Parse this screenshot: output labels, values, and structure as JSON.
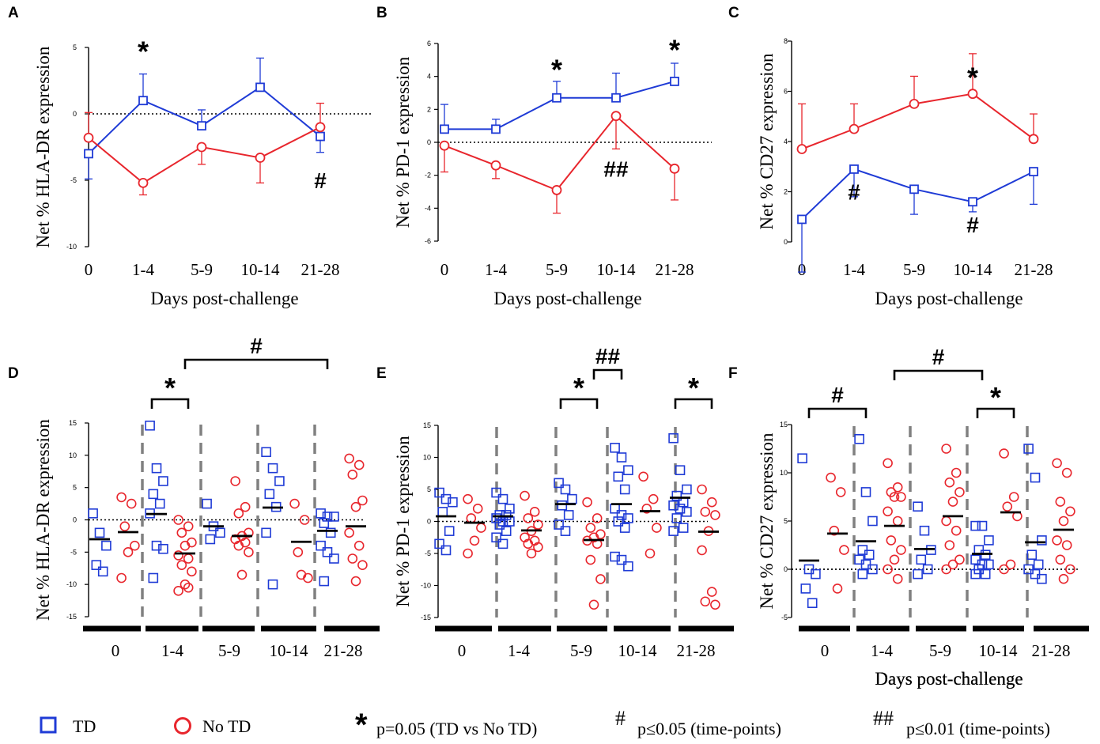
{
  "colors": {
    "td": "#1f3bd6",
    "notd": "#e8262d",
    "axis": "#000000",
    "divider": "#808080"
  },
  "legend": {
    "td_label": "TD",
    "notd_label": "No TD",
    "star_symbol": "*",
    "star_text": "p=0.05 (TD vs No TD)",
    "hash_symbol": "#",
    "hash_text": "p≤0.05 (time-points)",
    "dhash_symbol": "##",
    "dhash_text": "p≤0.01 (time-points)"
  },
  "chart_data": [
    {
      "panel": "A",
      "type": "line",
      "ylabel": "Net % HLA-DR expression",
      "xlabel": "Days post-challenge",
      "categories": [
        "0",
        "1-4",
        "5-9",
        "10-14",
        "21-28"
      ],
      "ylim": [
        -10,
        5
      ],
      "yticks": [
        -10,
        -5,
        0,
        5
      ],
      "grid": false,
      "series": [
        {
          "name": "TD",
          "color": "td",
          "marker": "square",
          "values": [
            -3.0,
            1.0,
            -0.9,
            2.0,
            -1.7
          ],
          "err": [
            1.9,
            2.0,
            1.2,
            2.2,
            1.2
          ]
        },
        {
          "name": "No TD",
          "color": "notd",
          "marker": "circle",
          "values": [
            -1.8,
            -5.2,
            -2.5,
            -3.3,
            -1.0
          ],
          "err": [
            1.9,
            0.9,
            1.3,
            1.9,
            1.8
          ]
        }
      ],
      "annotations": [
        {
          "text": "*",
          "cat": 1,
          "y": 4.8
        },
        {
          "text": "#",
          "cat": 4,
          "y": -5.0
        }
      ]
    },
    {
      "panel": "B",
      "type": "line",
      "ylabel": "Net % PD-1 expression",
      "xlabel": "Days post-challenge",
      "categories": [
        "0",
        "1-4",
        "5-9",
        "10-14",
        "21-28"
      ],
      "ylim": [
        -6,
        6
      ],
      "yticks": [
        -6,
        -4,
        -2,
        0,
        2,
        4,
        6
      ],
      "grid": false,
      "series": [
        {
          "name": "TD",
          "color": "td",
          "marker": "square",
          "values": [
            0.8,
            0.8,
            2.7,
            2.7,
            3.7
          ],
          "err": [
            1.5,
            0.6,
            1.0,
            1.5,
            1.1
          ]
        },
        {
          "name": "No TD",
          "color": "notd",
          "marker": "circle",
          "values": [
            -0.2,
            -1.4,
            -2.9,
            1.6,
            -1.6
          ],
          "err": [
            1.6,
            0.8,
            1.4,
            2.0,
            1.9
          ]
        }
      ],
      "annotations": [
        {
          "text": "*",
          "cat": 2,
          "y": 4.5
        },
        {
          "text": "*",
          "cat": 4,
          "y": 5.7
        },
        {
          "text": "##",
          "cat": 3,
          "y": -1.6
        }
      ]
    },
    {
      "panel": "C",
      "type": "line",
      "ylabel": "Net % CD27 expression",
      "xlabel": "Days post-challenge",
      "categories": [
        "0",
        "1-4",
        "5-9",
        "10-14",
        "21-28"
      ],
      "ylim": [
        0,
        8
      ],
      "yticks": [
        0,
        2,
        4,
        6,
        8
      ],
      "grid": false,
      "series": [
        {
          "name": "TD",
          "color": "td",
          "marker": "square",
          "values": [
            0.9,
            2.9,
            2.1,
            1.6,
            2.8
          ],
          "err": [
            2.1,
            1.1,
            1.0,
            0.4,
            1.3
          ]
        },
        {
          "name": "No TD",
          "color": "notd",
          "marker": "circle",
          "values": [
            3.7,
            4.5,
            5.5,
            5.9,
            4.1
          ],
          "err": [
            1.8,
            1.0,
            1.1,
            1.6,
            1.0
          ]
        }
      ],
      "annotations": [
        {
          "text": "*",
          "cat": 3,
          "y": 6.6
        },
        {
          "text": "#",
          "cat": 1,
          "y": 2.0
        },
        {
          "text": "#",
          "cat": 3,
          "y": 0.7
        }
      ]
    },
    {
      "panel": "D",
      "type": "scatter",
      "ylabel": "Net % HLA-DR expression",
      "xlabel": "Days post-challenge",
      "categories": [
        "0",
        "1-4",
        "5-9",
        "10-14",
        "21-28"
      ],
      "ylim": [
        -15,
        15
      ],
      "yticks": [
        -15,
        -10,
        -5,
        0,
        5,
        10,
        15
      ],
      "grid": false,
      "groups": [
        {
          "td": [
            1,
            -2,
            -4,
            -7,
            -8
          ],
          "td_mean": -3.0,
          "notd": [
            3.5,
            2.5,
            -1,
            -4,
            -5,
            -9
          ],
          "notd_mean": -1.9
        },
        {
          "td": [
            14.6,
            8,
            6,
            4,
            2.5,
            1,
            -4,
            -4.5,
            -9
          ],
          "td_mean": 0.9,
          "notd": [
            0,
            -1,
            -2,
            -3.5,
            -4,
            -5.5,
            -6,
            -7,
            -8,
            -10,
            -11,
            -10.5
          ],
          "notd_mean": -5.2
        },
        {
          "td": [
            2.5,
            -1,
            -2,
            -3
          ],
          "td_mean": -1.0,
          "notd": [
            6,
            2,
            1,
            -2,
            -2.5,
            -3,
            -3.5,
            -4,
            -5,
            -8.5
          ],
          "notd_mean": -2.5
        },
        {
          "td": [
            10.5,
            8,
            6,
            4,
            2,
            -2,
            -10
          ],
          "td_mean": 1.9,
          "notd": [
            2.5,
            0,
            -5,
            -9,
            -8.5
          ],
          "notd_mean": -3.4
        },
        {
          "td": [
            1,
            0.5,
            0.5,
            -0.5,
            -2,
            -4,
            -5,
            -6,
            -9.5
          ],
          "td_mean": -1.7,
          "notd": [
            9.5,
            8.5,
            7,
            3,
            2,
            -2,
            -4,
            -6,
            -7,
            -9.5
          ],
          "notd_mean": -1.0
        }
      ],
      "annotations": [
        {
          "text": "*",
          "from": 1,
          "to": 1,
          "level": "low"
        },
        {
          "text": "#",
          "from": 1,
          "to": 4,
          "level": "high"
        }
      ]
    },
    {
      "panel": "E",
      "type": "scatter",
      "ylabel": "Net % PD-1 expression",
      "xlabel": "Days post-challenge",
      "categories": [
        "0",
        "1-4",
        "5-9",
        "10-14",
        "21-28"
      ],
      "ylim": [
        -15,
        15
      ],
      "yticks": [
        -15,
        -10,
        -5,
        0,
        5,
        10,
        15
      ],
      "grid": false,
      "groups": [
        {
          "td": [
            4.5,
            3.5,
            3,
            1.5,
            -1.5,
            -3.5,
            -4.5
          ],
          "td_mean": 0.8,
          "notd": [
            3.5,
            2,
            0.5,
            -1,
            -3,
            -5
          ],
          "notd_mean": -0.2
        },
        {
          "td": [
            4.5,
            3.5,
            2,
            1,
            1,
            0.5,
            0,
            0,
            -0.5,
            -1.5,
            -2.5,
            -3.5
          ],
          "td_mean": 0.8,
          "notd": [
            4,
            1.5,
            0.5,
            -0.5,
            -1.5,
            -2.5,
            -3,
            -3.5,
            -4,
            -5
          ],
          "notd_mean": -1.4
        },
        {
          "td": [
            6,
            5,
            3.5,
            2.5,
            1,
            -0.5,
            -1.5
          ],
          "td_mean": 2.7,
          "notd": [
            3,
            0.5,
            -1,
            -2,
            -2.5,
            -3,
            -3.5,
            -6,
            -9,
            -13
          ],
          "notd_mean": -2.9
        },
        {
          "td": [
            11.5,
            10,
            8,
            7,
            5,
            2,
            1,
            0.5,
            0,
            -1,
            -5.5,
            -6,
            -7
          ],
          "td_mean": 2.7,
          "notd": [
            7,
            3.5,
            2,
            -1,
            -5
          ],
          "notd_mean": 1.6
        },
        {
          "td": [
            13,
            8,
            5,
            4,
            3,
            2.5,
            2,
            1.5,
            0.5,
            -1,
            -1.5
          ],
          "td_mean": 3.7,
          "notd": [
            5,
            3,
            1.5,
            1,
            -1.5,
            -4.5,
            -11,
            -12.5,
            -13
          ],
          "notd_mean": -1.6
        }
      ],
      "annotations": [
        {
          "text": "*",
          "from": 2,
          "to": 2,
          "level": "low"
        },
        {
          "text": "##",
          "from": 2,
          "to": 3,
          "level": "high"
        },
        {
          "text": "*",
          "from": 4,
          "to": 4,
          "level": "low"
        }
      ]
    },
    {
      "panel": "F",
      "type": "scatter",
      "ylabel": "Net % CD27 expression",
      "xlabel": "Days post-challenge",
      "categories": [
        "0",
        "1-4",
        "5-9",
        "10-14",
        "21-28"
      ],
      "ylim": [
        -5,
        15
      ],
      "yticks": [
        -5,
        0,
        5,
        10,
        15
      ],
      "grid": false,
      "groups": [
        {
          "td": [
            11.5,
            0,
            -0.5,
            -2,
            -3.5
          ],
          "td_mean": 0.9,
          "notd": [
            9.5,
            8,
            4,
            2,
            -2
          ],
          "notd_mean": 3.7
        },
        {
          "td": [
            13.5,
            8,
            5,
            2,
            1.5,
            1,
            0.5,
            0,
            -0.5
          ],
          "td_mean": 2.9,
          "notd": [
            11,
            8.5,
            8,
            7.5,
            7.5,
            6,
            5,
            3,
            2,
            1,
            0,
            -1
          ],
          "notd_mean": 4.5
        },
        {
          "td": [
            6.5,
            4,
            2,
            1,
            0,
            -0.5
          ],
          "td_mean": 2.1,
          "notd": [
            12.5,
            10,
            9,
            8,
            7,
            5,
            4,
            2.5,
            1,
            0.5,
            0
          ],
          "notd_mean": 5.5
        },
        {
          "td": [
            4.5,
            4.5,
            3,
            2,
            1.5,
            1,
            0.5,
            0.5,
            0,
            -0.5,
            -0.5
          ],
          "td_mean": 1.6,
          "notd": [
            12,
            7.5,
            6.5,
            5.5,
            0.5,
            0
          ],
          "notd_mean": 5.9
        },
        {
          "td": [
            12.5,
            9.5,
            3,
            1.5,
            0.5,
            0,
            -0.5,
            -1
          ],
          "td_mean": 2.8,
          "notd": [
            11,
            10,
            7,
            6,
            5,
            3,
            2.5,
            1,
            0,
            -1
          ],
          "notd_mean": 4.1
        }
      ],
      "annotations": [
        {
          "text": "#",
          "from": 0,
          "to": 1,
          "level": "low"
        },
        {
          "text": "#",
          "from": 1,
          "to": 3,
          "level": "high"
        },
        {
          "text": "*",
          "from": 3,
          "to": 3,
          "level": "low"
        }
      ]
    }
  ]
}
